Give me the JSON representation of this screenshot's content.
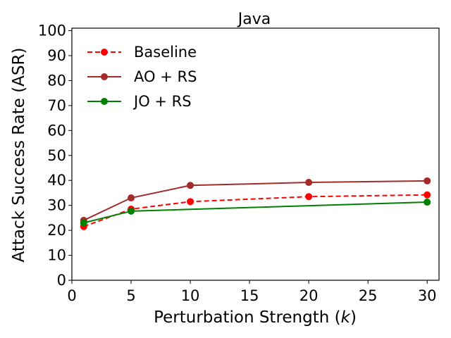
{
  "chart_data": {
    "type": "line",
    "title": "Java",
    "xlabel_prefix": "Perturbation Strength (",
    "xlabel_var": "k",
    "xlabel_suffix": ")",
    "ylabel": "Attack Success Rate (ASR)",
    "xlim": [
      0,
      31
    ],
    "ylim": [
      0,
      101
    ],
    "xticks": [
      0,
      5,
      10,
      15,
      20,
      25,
      30
    ],
    "yticks": [
      0,
      10,
      20,
      30,
      40,
      50,
      60,
      70,
      80,
      90,
      100
    ],
    "grid": false,
    "legend_position": "upper-left",
    "series": [
      {
        "name": "Baseline",
        "color": "#ff0000",
        "line_style": "dashed",
        "x": [
          1,
          5,
          10,
          20,
          30
        ],
        "y": [
          21.5,
          28.5,
          31.5,
          33.5,
          34.2
        ]
      },
      {
        "name": "AO + RS",
        "color": "#a52a2a",
        "line_style": "solid",
        "x": [
          1,
          5,
          10,
          20,
          30
        ],
        "y": [
          24.0,
          33.0,
          38.0,
          39.2,
          39.8
        ]
      },
      {
        "name": "JO + RS",
        "color": "#008000",
        "line_style": "solid",
        "x": [
          1,
          5,
          30
        ],
        "y": [
          23.0,
          27.7,
          31.3
        ]
      }
    ]
  }
}
